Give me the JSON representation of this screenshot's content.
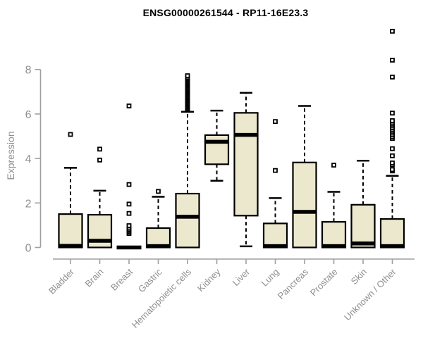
{
  "window": {
    "title": "ENSG00000261544 - RP11-16E23.3"
  },
  "style": {
    "box_fill": "#ece8cd",
    "box_stroke": "#000000",
    "median_color": "#000000",
    "whisker_color": "#000000",
    "axis_line_color": "#a0a0a0",
    "axis_text_color": "#8f8f8f",
    "title_color": "#000000",
    "outlier_marker": "open-square"
  },
  "chart_data": {
    "type": "boxplot",
    "title": "ENSG00000261544 - RP11-16E23.3",
    "xlabel": "",
    "ylabel": "Expression",
    "ylim": [
      0,
      9.9
    ],
    "yticks": [
      0,
      2,
      4,
      6,
      8
    ],
    "grid": false,
    "legend": false,
    "categories": [
      "Bladder",
      "Brain",
      "Breast",
      "Gastric",
      "Hematopoietic cells",
      "Kidney",
      "Liver",
      "Lung",
      "Pancreas",
      "Prostate",
      "Skin",
      "Unknown / Other"
    ],
    "boxes": [
      {
        "category": "Bladder",
        "low": 0,
        "q1": 0,
        "median": 0.07,
        "q3": 1.5,
        "high": 3.58,
        "outliers": [
          5.08
        ]
      },
      {
        "category": "Brain",
        "low": 0,
        "q1": 0,
        "median": 0.3,
        "q3": 1.47,
        "high": 2.55,
        "outliers": [
          3.93,
          4.42
        ]
      },
      {
        "category": "Breast",
        "low": 0,
        "q1": 0,
        "median": 0.0,
        "q3": 0.0,
        "high": 0.0,
        "outliers": [
          0.63,
          0.7,
          0.76,
          0.82,
          0.9,
          0.98,
          1.53,
          1.95,
          2.83,
          6.36
        ]
      },
      {
        "category": "Gastric",
        "low": 0,
        "q1": 0,
        "median": 0.06,
        "q3": 0.87,
        "high": 2.28,
        "outliers": [
          2.52
        ]
      },
      {
        "category": "Hematopoietic cells",
        "low": 0,
        "q1": 0,
        "median": 1.38,
        "q3": 2.42,
        "high": 6.1,
        "outliers": [
          6.2,
          6.25,
          6.3,
          6.35,
          6.4,
          6.45,
          6.5,
          6.55,
          6.6,
          6.65,
          6.7,
          6.75,
          6.8,
          6.85,
          6.9,
          6.95,
          7.0,
          7.05,
          7.1,
          7.15,
          7.2,
          7.25,
          7.3,
          7.35,
          7.4,
          7.45,
          7.5,
          7.55,
          7.6,
          7.65,
          7.72
        ]
      },
      {
        "category": "Kidney",
        "low": 3.0,
        "q1": 3.74,
        "median": 4.75,
        "q3": 5.05,
        "high": 6.15,
        "outliers": []
      },
      {
        "category": "Liver",
        "low": 0.05,
        "q1": 1.43,
        "median": 5.06,
        "q3": 6.05,
        "high": 6.95,
        "outliers": []
      },
      {
        "category": "Lung",
        "low": 0,
        "q1": 0,
        "median": 0.06,
        "q3": 1.08,
        "high": 2.22,
        "outliers": [
          3.46,
          5.66
        ]
      },
      {
        "category": "Pancreas",
        "low": 0,
        "q1": 0,
        "median": 1.6,
        "q3": 3.82,
        "high": 6.36,
        "outliers": []
      },
      {
        "category": "Prostate",
        "low": 0,
        "q1": 0,
        "median": 0.06,
        "q3": 1.15,
        "high": 2.5,
        "outliers": [
          3.7
        ]
      },
      {
        "category": "Skin",
        "low": 0,
        "q1": 0,
        "median": 0.18,
        "q3": 1.92,
        "high": 3.9,
        "outliers": []
      },
      {
        "category": "Unknown / Other",
        "low": 0,
        "q1": 0,
        "median": 0.06,
        "q3": 1.28,
        "high": 3.22,
        "outliers": [
          3.44,
          3.5,
          3.72,
          3.8,
          4.12,
          4.44,
          4.9,
          4.98,
          5.06,
          5.14,
          5.22,
          5.3,
          5.38,
          5.46,
          5.54,
          5.62,
          5.7,
          6.04,
          7.66,
          8.42,
          9.72
        ]
      }
    ]
  }
}
